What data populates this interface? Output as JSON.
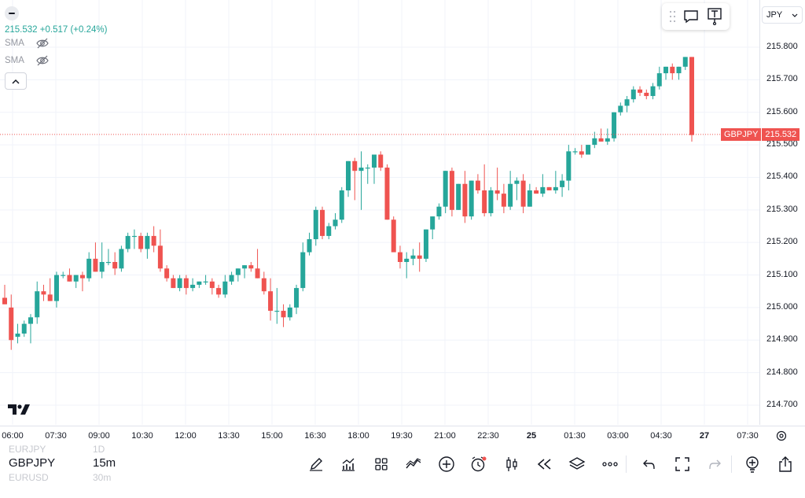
{
  "legend": {
    "price_change": "215.532  +0.517 (+0.24%)",
    "indicators": [
      {
        "label": "SMA"
      },
      {
        "label": "SMA"
      }
    ]
  },
  "currency": {
    "selected": "JPY"
  },
  "price_label": {
    "symbol": "GBPJPY",
    "value": "215.532"
  },
  "colors": {
    "up": "#26a69a",
    "down": "#ef5350",
    "grid": "#f0f3fa",
    "price_line": "#ef5350"
  },
  "icons": {
    "toolbar": [
      "drag-grip-icon",
      "comment-icon",
      "text-note-icon"
    ],
    "bottom": [
      "pencil-icon",
      "indicators-icon",
      "grid-layout-icon",
      "compare-icon",
      "add-icon",
      "alert-clock-icon",
      "candles-icon",
      "replay-icon",
      "layers-icon",
      "more-icon",
      "undo-icon",
      "fullscreen-icon",
      "redo-icon",
      "idea-icon",
      "share-icon"
    ]
  },
  "bottom_bar": {
    "symbol_prev": "EURJPY",
    "symbol": "GBPJPY",
    "symbol_next": "EURUSD",
    "interval_prev": "1D",
    "interval": "15m",
    "interval_next": "30m"
  },
  "chart_data": {
    "type": "candlestick",
    "symbol": "GBPJPY",
    "interval": "15m",
    "ylim": [
      214.64,
      215.93
    ],
    "y_ticks": [
      "215.800",
      "215.700",
      "215.600",
      "215.500",
      "215.400",
      "215.300",
      "215.200",
      "215.100",
      "215.000",
      "214.900",
      "214.800",
      "214.700"
    ],
    "y_tick_values": [
      215.8,
      215.7,
      215.6,
      215.5,
      215.4,
      215.3,
      215.2,
      215.1,
      215.0,
      214.9,
      214.8,
      214.7
    ],
    "x_ticks": [
      "06:00",
      "07:30",
      "09:00",
      "10:30",
      "12:00",
      "13:30",
      "15:00",
      "16:30",
      "18:00",
      "19:30",
      "21:00",
      "22:30",
      "25",
      "01:30",
      "03:00",
      "04:30",
      "27",
      "07:30"
    ],
    "last_price": 215.532,
    "candles": [
      [
        215.03,
        215.07,
        215.01,
        215.01
      ],
      [
        215.0,
        215.04,
        214.87,
        214.9
      ],
      [
        214.91,
        214.95,
        214.89,
        214.92
      ],
      [
        214.92,
        214.96,
        214.91,
        214.95
      ],
      [
        214.95,
        214.98,
        214.89,
        214.97
      ],
      [
        214.97,
        215.08,
        214.95,
        215.05
      ],
      [
        215.05,
        215.07,
        215.02,
        215.04
      ],
      [
        215.04,
        215.09,
        215.02,
        215.02
      ],
      [
        215.02,
        215.11,
        215.0,
        215.1
      ],
      [
        215.1,
        215.11,
        215.09,
        215.1
      ],
      [
        215.1,
        215.12,
        215.08,
        215.08
      ],
      [
        215.08,
        215.1,
        215.06,
        215.1
      ],
      [
        215.1,
        215.11,
        215.05,
        215.09
      ],
      [
        215.09,
        215.17,
        215.08,
        215.15
      ],
      [
        215.15,
        215.2,
        215.11,
        215.11
      ],
      [
        215.11,
        215.2,
        215.09,
        215.14
      ],
      [
        215.14,
        215.18,
        215.13,
        215.14
      ],
      [
        215.14,
        215.17,
        215.1,
        215.12
      ],
      [
        215.12,
        215.19,
        215.11,
        215.18
      ],
      [
        215.18,
        215.23,
        215.17,
        215.22
      ],
      [
        215.22,
        215.24,
        215.18,
        215.22
      ],
      [
        215.22,
        215.23,
        215.17,
        215.18
      ],
      [
        215.18,
        215.23,
        215.15,
        215.22
      ],
      [
        215.22,
        215.25,
        215.17,
        215.19
      ],
      [
        215.19,
        215.24,
        215.11,
        215.12
      ],
      [
        215.12,
        215.13,
        215.08,
        215.09
      ],
      [
        215.09,
        215.1,
        215.06,
        215.06
      ],
      [
        215.06,
        215.1,
        215.05,
        215.09
      ],
      [
        215.09,
        215.1,
        215.04,
        215.06
      ],
      [
        215.06,
        215.09,
        215.05,
        215.07
      ],
      [
        215.07,
        215.08,
        215.06,
        215.08
      ],
      [
        215.08,
        215.1,
        215.07,
        215.08
      ],
      [
        215.08,
        215.09,
        215.04,
        215.06
      ],
      [
        215.06,
        215.07,
        215.03,
        215.04
      ],
      [
        215.04,
        215.1,
        215.03,
        215.08
      ],
      [
        215.08,
        215.11,
        215.07,
        215.1
      ],
      [
        215.1,
        215.12,
        215.08,
        215.12
      ],
      [
        215.12,
        215.13,
        215.09,
        215.13
      ],
      [
        215.13,
        215.14,
        215.11,
        215.12
      ],
      [
        215.12,
        215.18,
        215.09,
        215.09
      ],
      [
        215.09,
        215.11,
        215.04,
        215.05
      ],
      [
        215.05,
        215.09,
        214.96,
        214.99
      ],
      [
        214.99,
        215.06,
        214.95,
        214.99
      ],
      [
        214.99,
        215.01,
        214.94,
        214.97
      ],
      [
        214.97,
        215.01,
        214.96,
        215.0
      ],
      [
        215.0,
        215.07,
        214.98,
        215.06
      ],
      [
        215.06,
        215.2,
        215.05,
        215.17
      ],
      [
        215.17,
        215.23,
        215.16,
        215.21
      ],
      [
        215.21,
        215.31,
        215.19,
        215.3
      ],
      [
        215.3,
        215.31,
        215.21,
        215.22
      ],
      [
        215.22,
        215.26,
        215.21,
        215.25
      ],
      [
        215.25,
        215.29,
        215.24,
        215.27
      ],
      [
        215.27,
        215.37,
        215.26,
        215.36
      ],
      [
        215.36,
        215.45,
        215.34,
        215.45
      ],
      [
        215.45,
        215.46,
        215.33,
        215.42
      ],
      [
        215.42,
        215.48,
        215.3,
        215.43
      ],
      [
        215.43,
        215.44,
        215.38,
        215.43
      ],
      [
        215.43,
        215.47,
        215.38,
        215.47
      ],
      [
        215.47,
        215.48,
        215.42,
        215.43
      ],
      [
        215.43,
        215.44,
        215.27,
        215.27
      ],
      [
        215.27,
        215.28,
        215.18,
        215.17
      ],
      [
        215.17,
        215.19,
        215.12,
        215.14
      ],
      [
        215.14,
        215.17,
        215.09,
        215.15
      ],
      [
        215.15,
        215.18,
        215.13,
        215.16
      ],
      [
        215.16,
        215.2,
        215.11,
        215.15
      ],
      [
        215.15,
        215.24,
        215.14,
        215.24
      ],
      [
        215.24,
        215.28,
        215.21,
        215.28
      ],
      [
        215.28,
        215.32,
        215.27,
        215.31
      ],
      [
        215.31,
        215.42,
        215.29,
        215.42
      ],
      [
        215.42,
        215.43,
        215.28,
        215.3
      ],
      [
        215.3,
        215.38,
        215.3,
        215.38
      ],
      [
        215.38,
        215.42,
        215.26,
        215.28
      ],
      [
        215.28,
        215.39,
        215.27,
        215.39
      ],
      [
        215.39,
        215.41,
        215.35,
        215.36
      ],
      [
        215.36,
        215.44,
        215.28,
        215.29
      ],
      [
        215.29,
        215.37,
        215.28,
        215.36
      ],
      [
        215.36,
        215.43,
        215.33,
        215.35
      ],
      [
        215.35,
        215.38,
        215.29,
        215.31
      ],
      [
        215.31,
        215.42,
        215.3,
        215.38
      ],
      [
        215.38,
        215.4,
        215.33,
        215.39
      ],
      [
        215.39,
        215.41,
        215.29,
        215.31
      ],
      [
        215.31,
        215.38,
        215.31,
        215.36
      ],
      [
        215.36,
        215.37,
        215.35,
        215.35
      ],
      [
        215.35,
        215.41,
        215.34,
        215.37
      ],
      [
        215.37,
        215.37,
        215.36,
        215.36
      ],
      [
        215.36,
        215.42,
        215.35,
        215.37
      ],
      [
        215.37,
        215.41,
        215.34,
        215.39
      ],
      [
        215.39,
        215.5,
        215.36,
        215.48
      ],
      [
        215.48,
        215.49,
        215.47,
        215.48
      ],
      [
        215.48,
        215.5,
        215.46,
        215.47
      ],
      [
        215.47,
        215.5,
        215.47,
        215.5
      ],
      [
        215.5,
        215.54,
        215.49,
        215.52
      ],
      [
        215.52,
        215.55,
        215.51,
        215.51
      ],
      [
        215.51,
        215.55,
        215.5,
        215.52
      ],
      [
        215.52,
        215.6,
        215.51,
        215.6
      ],
      [
        215.6,
        215.63,
        215.59,
        215.62
      ],
      [
        215.62,
        215.65,
        215.6,
        215.64
      ],
      [
        215.64,
        215.68,
        215.63,
        215.67
      ],
      [
        215.67,
        215.68,
        215.65,
        215.66
      ],
      [
        215.66,
        215.67,
        215.64,
        215.65
      ],
      [
        215.65,
        215.69,
        215.64,
        215.68
      ],
      [
        215.68,
        215.74,
        215.67,
        215.72
      ],
      [
        215.72,
        215.74,
        215.7,
        215.74
      ],
      [
        215.74,
        215.75,
        215.7,
        215.72
      ],
      [
        215.72,
        215.74,
        215.7,
        215.74
      ],
      [
        215.74,
        215.77,
        215.73,
        215.77
      ],
      [
        215.77,
        215.77,
        215.51,
        215.53
      ]
    ]
  }
}
